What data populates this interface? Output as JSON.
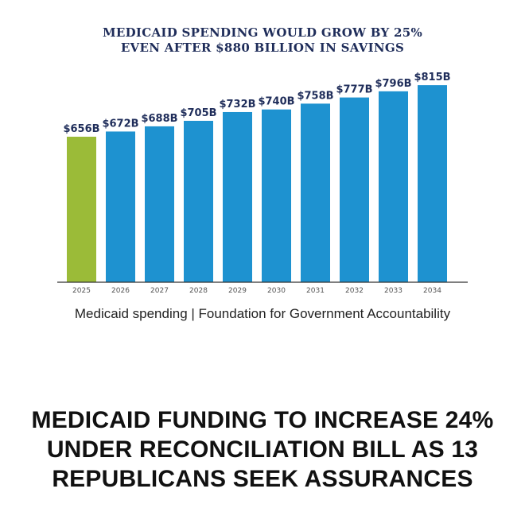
{
  "chart_data": {
    "type": "bar",
    "title_lines": [
      "MEDICAID SPENDING WOULD GROW BY 25%",
      "EVEN AFTER $880 BILLION IN SAVINGS"
    ],
    "categories": [
      "2025",
      "2026",
      "2027",
      "2028",
      "2029",
      "2030",
      "2031",
      "2032",
      "2033",
      "2034"
    ],
    "values": [
      656,
      672,
      688,
      705,
      732,
      740,
      758,
      777,
      796,
      815
    ],
    "value_labels": [
      "$656B",
      "$672B",
      "$688B",
      "$705B",
      "$732B",
      "$740B",
      "$758B",
      "$777B",
      "$796B",
      "$815B"
    ],
    "unit": "billions USD",
    "ylim": [
      0,
      850
    ],
    "xlabel": "",
    "ylabel": "",
    "grid": false,
    "colors": {
      "highlight": "#9bbb38",
      "bar": "#1e92d0",
      "label": "#1f2d5a",
      "axis": "#333333"
    },
    "highlight_index": 0
  },
  "caption": "Medicaid spending | Foundation for Government Accountability",
  "headline_lines": [
    "MEDICAID FUNDING TO INCREASE 24%",
    "UNDER RECONCILIATION BILL AS 13",
    "REPUBLICANS SEEK ASSURANCES"
  ]
}
